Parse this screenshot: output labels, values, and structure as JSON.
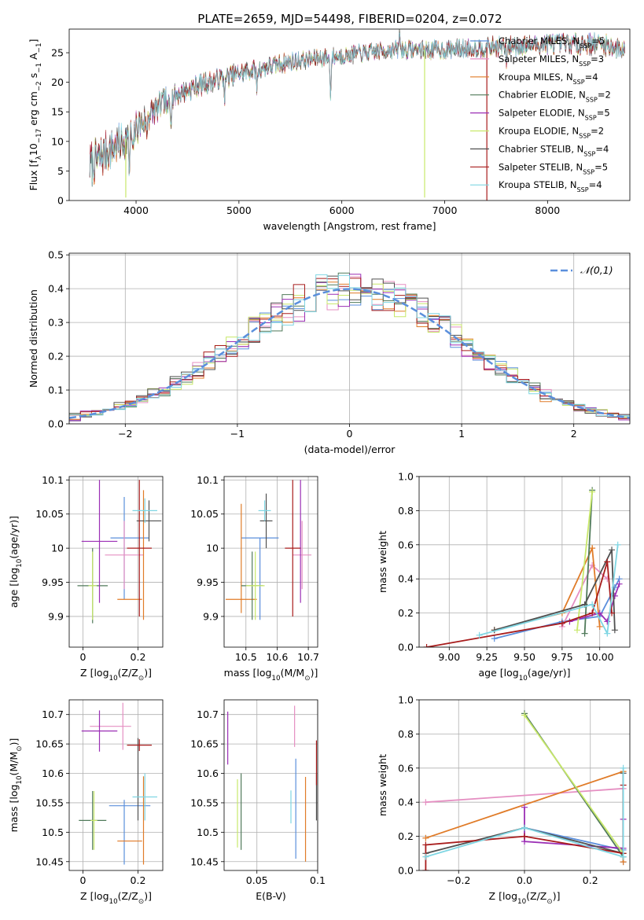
{
  "title": "PLATE=2659, MJD=54498, FIBERID=0204, z=0.072",
  "colors": {
    "chabrier_miles": "#5b8fdc",
    "salpeter_miles": "#e58fc2",
    "kroupa_miles": "#e07b28",
    "chabrier_elodie": "#507a5a",
    "salpeter_elodie": "#9b2fb5",
    "kroupa_elodie": "#c8e86a",
    "chabrier_stelib": "#505050",
    "salpeter_stelib": "#a81c1c",
    "kroupa_stelib": "#7fd6e3",
    "normal": "#5b8fdc"
  },
  "legend_models": [
    {
      "label": "Chabrier MILES, N",
      "sub": "SSP",
      "suffix": "=5",
      "key": "chabrier_miles"
    },
    {
      "label": "Salpeter MILES, N",
      "sub": "SSP",
      "suffix": "=3",
      "key": "salpeter_miles"
    },
    {
      "label": "Kroupa MILES, N",
      "sub": "SSP",
      "suffix": "=4",
      "key": "kroupa_miles"
    },
    {
      "label": "Chabrier ELODIE, N",
      "sub": "SSP",
      "suffix": "=2",
      "key": "chabrier_elodie"
    },
    {
      "label": "Salpeter ELODIE, N",
      "sub": "SSP",
      "suffix": "=5",
      "key": "salpeter_elodie"
    },
    {
      "label": "Kroupa ELODIE, N",
      "sub": "SSP",
      "suffix": "=2",
      "key": "kroupa_elodie"
    },
    {
      "label": "Chabrier STELIB, N",
      "sub": "SSP",
      "suffix": "=4",
      "key": "chabrier_stelib"
    },
    {
      "label": "Salpeter STELIB, N",
      "sub": "SSP",
      "suffix": "=5",
      "key": "salpeter_stelib"
    },
    {
      "label": "Kroupa STELIB, N",
      "sub": "SSP",
      "suffix": "=4",
      "key": "kroupa_stelib"
    }
  ],
  "chart_data": [
    {
      "id": "spectrum",
      "type": "line",
      "xlabel": "wavelength [Angstrom, rest frame]",
      "ylabel_parts": [
        "Flux [f",
        "λ",
        "10",
        "−17",
        " erg cm",
        "−2",
        " s",
        "−1",
        " A",
        "−1",
        "]"
      ],
      "xlim": [
        3350,
        8800
      ],
      "ylim": [
        0,
        29
      ],
      "xticks": [
        4000,
        5000,
        6000,
        7000,
        8000
      ],
      "yticks": [
        0,
        5,
        10,
        15,
        20,
        25
      ],
      "grid": false,
      "legend": "right",
      "x_start": 3550,
      "x_end": 8750,
      "continuum": [
        [
          3550,
          6.0
        ],
        [
          3700,
          8.0
        ],
        [
          3900,
          10.5
        ],
        [
          4100,
          14.0
        ],
        [
          4300,
          17.0
        ],
        [
          4600,
          19.5
        ],
        [
          5000,
          21.5
        ],
        [
          5500,
          23.5
        ],
        [
          6000,
          24.5
        ],
        [
          6500,
          25.5
        ],
        [
          7000,
          25.5
        ],
        [
          7500,
          26.0
        ],
        [
          8000,
          26.5
        ],
        [
          8500,
          26.5
        ],
        [
          8750,
          25.5
        ]
      ],
      "absorption_lines": [
        [
          3934,
          6
        ],
        [
          3969,
          5
        ],
        [
          4102,
          3
        ],
        [
          4305,
          3
        ],
        [
          4340,
          3
        ],
        [
          4861,
          3
        ],
        [
          5175,
          3
        ],
        [
          5890,
          6
        ],
        [
          6563,
          2
        ],
        [
          7600,
          2.5
        ]
      ],
      "emission_lines": [
        [
          6563,
          5.0
        ]
      ],
      "noise_amplitude": [
        [
          3550,
          3.0
        ],
        [
          4500,
          1.5
        ],
        [
          6000,
          1.2
        ],
        [
          8750,
          1.5
        ]
      ],
      "dropout_lines": [
        {
          "x": 3900,
          "y_bottom": 0.5,
          "key": "kroupa_elodie"
        },
        {
          "x": 6805,
          "y_bottom": 0.5,
          "key": "kroupa_elodie"
        },
        {
          "x": 7410,
          "y_bottom": 0.0,
          "key": "salpeter_stelib"
        }
      ]
    },
    {
      "id": "residuals",
      "type": "histogram",
      "xlabel": "(data-model)/error",
      "ylabel": "Normed distribution",
      "xlim": [
        -2.5,
        2.5
      ],
      "ylim": [
        0,
        0.505
      ],
      "xticks": [
        -2,
        -1,
        0,
        1,
        2
      ],
      "xtick_labels": [
        "−2",
        "−1",
        "0",
        "1",
        "2"
      ],
      "yticks": [
        0.0,
        0.1,
        0.2,
        0.3,
        0.4,
        0.5
      ],
      "ytick_labels": [
        "0.0",
        "0.1",
        "0.2",
        "0.3",
        "0.4",
        "0.5"
      ],
      "grid": true,
      "bin_width": 0.1,
      "normal_pdf": {
        "mean": 0,
        "std": 1,
        "label": "𝒩(0,1)"
      },
      "legend": "upper right"
    },
    {
      "id": "age-vs-Z",
      "type": "scatter-errorbar",
      "xlabel_parts": [
        "Z [log",
        "10",
        "(Z/Z",
        "⊙",
        ")]"
      ],
      "ylabel_parts": [
        "age  [log",
        "10",
        "(age/yr)]"
      ],
      "xlim": [
        -0.05,
        0.29
      ],
      "ylim": [
        9.855,
        10.105
      ],
      "xticks": [
        0.0,
        0.2
      ],
      "yticks": [
        9.9,
        9.95,
        10.0,
        10.05,
        10.1
      ],
      "grid": true,
      "points": [
        {
          "key": "chabrier_miles",
          "x": 0.15,
          "y": 10.0,
          "xe": 0.0,
          "ye": 0.075
        },
        {
          "key": "chabrier_miles",
          "x": 0.17,
          "y": 10.015,
          "xe": 0.07,
          "ye": 0.0
        },
        {
          "key": "salpeter_miles",
          "x": 0.15,
          "y": 9.99,
          "xe": 0.07,
          "ye": 0.05
        },
        {
          "key": "kroupa_miles",
          "x": 0.22,
          "y": 9.99,
          "xe": 0.0,
          "ye": 0.095
        },
        {
          "key": "kroupa_miles",
          "x": 0.17,
          "y": 9.925,
          "xe": 0.045,
          "ye": 0.0
        },
        {
          "key": "chabrier_elodie",
          "x": 0.035,
          "y": 9.945,
          "xe": 0.055,
          "ye": 0.055
        },
        {
          "key": "salpeter_elodie",
          "x": 0.06,
          "y": 10.01,
          "xe": 0.065,
          "ye": 0.09
        },
        {
          "key": "kroupa_elodie",
          "x": 0.035,
          "y": 9.945,
          "xe": 0.015,
          "ye": 0.05
        },
        {
          "key": "chabrier_stelib",
          "x": 0.24,
          "y": 10.04,
          "xe": 0.045,
          "ye": 0.03
        },
        {
          "key": "salpeter_stelib",
          "x": 0.205,
          "y": 10.0,
          "xe": 0.045,
          "ye": 0.1
        },
        {
          "key": "kroupa_stelib",
          "x": 0.225,
          "y": 10.055,
          "xe": 0.045,
          "ye": 0.018
        }
      ]
    },
    {
      "id": "age-vs-mass",
      "type": "scatter-errorbar",
      "xlabel_parts": [
        "mass [log",
        "10",
        "(M/M",
        "⊙",
        ")]"
      ],
      "ylabel_parts": [],
      "xlim": [
        10.43,
        10.73
      ],
      "ylim": [
        9.855,
        10.105
      ],
      "xticks": [
        10.5,
        10.6,
        10.7
      ],
      "yticks": [
        9.9,
        9.95,
        10.0,
        10.05,
        10.1
      ],
      "grid": true,
      "points": [
        {
          "key": "chabrier_miles",
          "x": 10.545,
          "y": 10.015,
          "xe": 0.06,
          "ye": 0.0
        },
        {
          "key": "chabrier_miles",
          "x": 10.545,
          "y": 9.955,
          "xe": 0.0,
          "ye": 0.06
        },
        {
          "key": "salpeter_miles",
          "x": 10.68,
          "y": 9.99,
          "xe": 0.03,
          "ye": 0.05
        },
        {
          "key": "kroupa_miles",
          "x": 10.485,
          "y": 9.925,
          "xe": 0.05,
          "ye": 0.0
        },
        {
          "key": "kroupa_miles",
          "x": 10.485,
          "y": 9.985,
          "xe": 0.0,
          "ye": 0.08
        },
        {
          "key": "chabrier_elodie",
          "x": 10.52,
          "y": 9.945,
          "xe": 0.035,
          "ye": 0.05
        },
        {
          "key": "salpeter_elodie",
          "x": 10.675,
          "y": 10.01,
          "xe": 0.0,
          "ye": 0.09
        },
        {
          "key": "kroupa_elodie",
          "x": 10.53,
          "y": 9.945,
          "xe": 0.03,
          "ye": 0.05
        },
        {
          "key": "chabrier_stelib",
          "x": 10.565,
          "y": 10.04,
          "xe": 0.02,
          "ye": 0.04
        },
        {
          "key": "salpeter_stelib",
          "x": 10.65,
          "y": 10.0,
          "xe": 0.025,
          "ye": 0.1
        },
        {
          "key": "kroupa_stelib",
          "x": 10.56,
          "y": 10.055,
          "xe": 0.02,
          "ye": 0.015
        }
      ]
    },
    {
      "id": "massweight-vs-age",
      "type": "line",
      "xlabel_parts": [
        "age  [log",
        "10",
        "(age/yr)]"
      ],
      "ylabel": "mass weight",
      "xlim": [
        8.8,
        10.2
      ],
      "ylim": [
        0,
        1.0
      ],
      "xticks": [
        9.0,
        9.25,
        9.5,
        9.75,
        10.0
      ],
      "xtick_labels": [
        "9.00",
        "9.25",
        "9.50",
        "9.75",
        "10.00"
      ],
      "yticks": [
        0,
        0.2,
        0.4,
        0.6,
        0.8,
        1.0
      ],
      "ytick_labels": [
        "0.0",
        "0.2",
        "0.4",
        "0.6",
        "0.8",
        "1.0"
      ],
      "grid": true,
      "series": [
        {
          "key": "chabrier_miles",
          "x": [
            9.3,
            9.75,
            10.0,
            10.1,
            10.13
          ],
          "y": [
            0.05,
            0.15,
            0.18,
            0.35,
            0.4
          ]
        },
        {
          "key": "salpeter_miles",
          "x": [
            9.75,
            9.95,
            10.05
          ],
          "y": [
            0.12,
            0.48,
            0.4
          ]
        },
        {
          "key": "kroupa_miles",
          "x": [
            9.3,
            9.75,
            9.95,
            10.0
          ],
          "y": [
            0.1,
            0.2,
            0.58,
            0.12
          ]
        },
        {
          "key": "chabrier_elodie",
          "x": [
            9.9,
            9.95
          ],
          "y": [
            0.08,
            0.92
          ]
        },
        {
          "key": "salpeter_elodie",
          "x": [
            9.8,
            10.0,
            10.05,
            10.1,
            10.13
          ],
          "y": [
            0.15,
            0.2,
            0.15,
            0.3,
            0.37
          ]
        },
        {
          "key": "kroupa_elodie",
          "x": [
            9.85,
            9.95
          ],
          "y": [
            0.1,
            0.91
          ]
        },
        {
          "key": "chabrier_stelib",
          "x": [
            9.3,
            9.9,
            10.08,
            10.1
          ],
          "y": [
            0.1,
            0.25,
            0.57,
            0.1
          ]
        },
        {
          "key": "salpeter_stelib",
          "x": [
            8.85,
            9.75,
            9.95,
            10.05,
            10.08
          ],
          "y": [
            0.0,
            0.14,
            0.2,
            0.5,
            0.2
          ]
        },
        {
          "key": "kroupa_stelib",
          "x": [
            9.2,
            9.95,
            10.05,
            10.12
          ],
          "y": [
            0.07,
            0.25,
            0.08,
            0.6
          ]
        }
      ]
    },
    {
      "id": "mass-vs-Z",
      "type": "scatter-errorbar",
      "xlabel_parts": [
        "Z [log",
        "10",
        "(Z/Z",
        "⊙",
        ")]"
      ],
      "ylabel_parts": [
        "mass [log",
        "10",
        "(M/M",
        "⊙",
        ")]"
      ],
      "xlim": [
        -0.05,
        0.29
      ],
      "ylim": [
        10.435,
        10.725
      ],
      "xticks": [
        0.0,
        0.2
      ],
      "yticks": [
        10.45,
        10.5,
        10.55,
        10.6,
        10.65,
        10.7
      ],
      "grid": true,
      "points": [
        {
          "key": "chabrier_miles",
          "x": 0.15,
          "y": 10.5,
          "xe": 0.0,
          "ye": 0.055
        },
        {
          "key": "chabrier_miles",
          "x": 0.17,
          "y": 10.545,
          "xe": 0.075,
          "ye": 0.0
        },
        {
          "key": "salpeter_miles",
          "x": 0.1,
          "y": 10.68,
          "xe": 0.075,
          "ye": 0.0
        },
        {
          "key": "salpeter_miles",
          "x": 0.145,
          "y": 10.68,
          "xe": 0.0,
          "ye": 0.04
        },
        {
          "key": "kroupa_miles",
          "x": 0.22,
          "y": 10.52,
          "xe": 0.0,
          "ye": 0.075
        },
        {
          "key": "kroupa_miles",
          "x": 0.17,
          "y": 10.485,
          "xe": 0.045,
          "ye": 0.0
        },
        {
          "key": "chabrier_elodie",
          "x": 0.035,
          "y": 10.52,
          "xe": 0.05,
          "ye": 0.05
        },
        {
          "key": "salpeter_elodie",
          "x": 0.06,
          "y": 10.672,
          "xe": 0.065,
          "ye": 0.035
        },
        {
          "key": "kroupa_elodie",
          "x": 0.04,
          "y": 10.52,
          "xe": 0.012,
          "ye": 0.05
        },
        {
          "key": "chabrier_stelib",
          "x": 0.2,
          "y": 10.59,
          "xe": 0.0,
          "ye": 0.07
        },
        {
          "key": "salpeter_stelib",
          "x": 0.205,
          "y": 10.648,
          "xe": 0.045,
          "ye": 0.01
        },
        {
          "key": "kroupa_stelib",
          "x": 0.225,
          "y": 10.56,
          "xe": 0.045,
          "ye": 0.04
        }
      ]
    },
    {
      "id": "mass-vs-ebv",
      "type": "scatter-errorbar",
      "xlabel": "E(B-V)",
      "ylabel_parts": [],
      "xlim": [
        0.023,
        0.1
      ],
      "ylim": [
        10.435,
        10.725
      ],
      "xticks": [
        0.05,
        0.1
      ],
      "yticks": [
        10.45,
        10.5,
        10.55,
        10.6,
        10.65,
        10.7
      ],
      "grid": true,
      "points": [
        {
          "key": "salpeter_elodie",
          "x": 0.026,
          "y": 10.66,
          "xe": 0.0,
          "ye": 0.045
        },
        {
          "key": "kroupa_elodie",
          "x": 0.034,
          "y": 10.532,
          "xe": 0.0,
          "ye": 0.058
        },
        {
          "key": "chabrier_elodie",
          "x": 0.037,
          "y": 10.535,
          "xe": 0.0,
          "ye": 0.065
        },
        {
          "key": "kroupa_stelib",
          "x": 0.078,
          "y": 10.543,
          "xe": 0.0,
          "ye": 0.028
        },
        {
          "key": "salpeter_miles",
          "x": 0.081,
          "y": 10.68,
          "xe": 0.0,
          "ye": 0.035
        },
        {
          "key": "chabrier_miles",
          "x": 0.082,
          "y": 10.54,
          "xe": 0.0,
          "ye": 0.085
        },
        {
          "key": "kroupa_miles",
          "x": 0.09,
          "y": 10.522,
          "xe": 0.0,
          "ye": 0.072
        },
        {
          "key": "chabrier_stelib",
          "x": 0.099,
          "y": 10.56,
          "xe": 0.0,
          "ye": 0.04
        },
        {
          "key": "salpeter_stelib",
          "x": 0.099,
          "y": 10.618,
          "xe": 0.0,
          "ye": 0.038
        }
      ]
    },
    {
      "id": "massweight-vs-Z",
      "type": "line",
      "xlabel_parts": [
        "Z [log",
        "10",
        "(Z/Z",
        "⊙",
        ")]"
      ],
      "ylabel": "mass weight",
      "xlim": [
        -0.32,
        0.32
      ],
      "ylim": [
        0,
        1.0
      ],
      "xticks": [
        -0.2,
        0.0,
        0.2
      ],
      "xtick_labels": [
        "−0.2",
        "0.0",
        "0.2"
      ],
      "yticks": [
        0,
        0.2,
        0.4,
        0.6,
        0.8,
        1.0
      ],
      "ytick_labels": [
        "0.0",
        "0.2",
        "0.4",
        "0.6",
        "0.8",
        "1.0"
      ],
      "grid": true,
      "series": [
        {
          "key": "chabrier_miles",
          "x": [
            0.0,
            0.3,
            0.3
          ],
          "y": [
            0.25,
            0.12,
            0.05
          ]
        },
        {
          "key": "salpeter_miles",
          "x": [
            -0.3,
            0.3
          ],
          "y": [
            0.4,
            0.48
          ]
        },
        {
          "key": "kroupa_miles",
          "x": [
            -0.3,
            0.3,
            0.3
          ],
          "y": [
            0.19,
            0.58,
            0.05
          ]
        },
        {
          "key": "chabrier_elodie",
          "x": [
            0.0,
            0.3
          ],
          "y": [
            0.92,
            0.08
          ]
        },
        {
          "key": "salpeter_elodie",
          "x": [
            0.0,
            0.0,
            0.3,
            0.3
          ],
          "y": [
            0.37,
            0.17,
            0.13,
            0.3
          ]
        },
        {
          "key": "kroupa_elodie",
          "x": [
            0.0,
            0.3
          ],
          "y": [
            0.91,
            0.1
          ]
        },
        {
          "key": "chabrier_stelib",
          "x": [
            -0.3,
            0.0,
            0.3,
            0.3
          ],
          "y": [
            0.1,
            0.25,
            0.1,
            0.57
          ]
        },
        {
          "key": "salpeter_stelib",
          "x": [
            -0.3,
            -0.3,
            0.0,
            0.3,
            0.3
          ],
          "y": [
            0.0,
            0.15,
            0.2,
            0.1,
            0.5
          ]
        },
        {
          "key": "kroupa_stelib",
          "x": [
            -0.3,
            0.0,
            0.3,
            0.3
          ],
          "y": [
            0.08,
            0.25,
            0.08,
            0.6
          ]
        }
      ]
    }
  ]
}
